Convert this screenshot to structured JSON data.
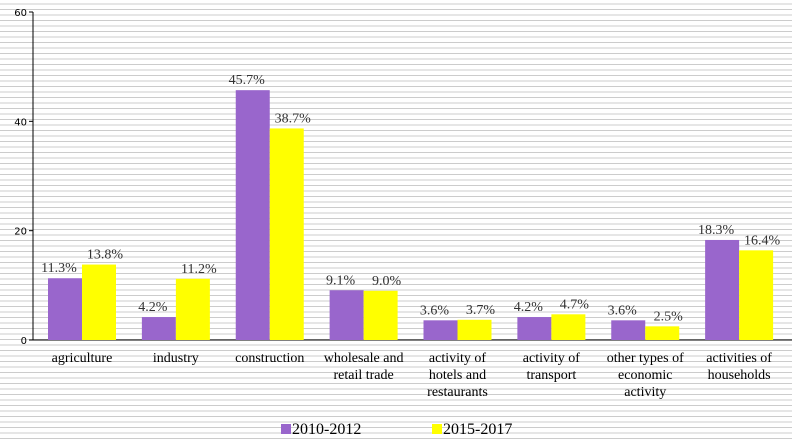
{
  "chart_data": {
    "type": "bar",
    "categories": [
      [
        "agriculture"
      ],
      [
        "industry"
      ],
      [
        "construction"
      ],
      [
        "wholesale and",
        "retail trade"
      ],
      [
        "activity of",
        "hotels and",
        "restaurants"
      ],
      [
        "activity of",
        "transport"
      ],
      [
        "other types of",
        "economic",
        "activity"
      ],
      [
        "activities of",
        "households"
      ]
    ],
    "series": [
      {
        "name": "2010-2012",
        "color": "#9966CC",
        "values": [
          11.3,
          4.2,
          45.7,
          9.1,
          3.6,
          4.2,
          3.6,
          18.3
        ],
        "labels": [
          "11.3%",
          "4.2%",
          "45.7%",
          "9.1%",
          "3.6%",
          "4.2%",
          "3.6%",
          "18.3%"
        ]
      },
      {
        "name": "2015-2017",
        "color": "#FFFF00",
        "values": [
          13.8,
          11.2,
          38.7,
          9.0,
          3.7,
          4.7,
          2.5,
          16.4
        ],
        "labels": [
          "13.8%",
          "11.2%",
          "38.7%",
          "9.0%",
          "3.7%",
          "4.7%",
          "2.5%",
          "16.4%"
        ]
      }
    ],
    "yticks": [
      0,
      20,
      40,
      60
    ],
    "ylim": [
      0,
      60
    ],
    "grid": true,
    "legend": "bottom",
    "title": "",
    "xlabel": "",
    "ylabel": ""
  }
}
